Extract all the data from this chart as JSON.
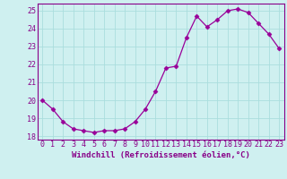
{
  "hours": [
    0,
    1,
    2,
    3,
    4,
    5,
    6,
    7,
    8,
    9,
    10,
    11,
    12,
    13,
    14,
    15,
    16,
    17,
    18,
    19,
    20,
    21,
    22,
    23
  ],
  "values": [
    20.0,
    19.5,
    18.8,
    18.4,
    18.3,
    18.2,
    18.3,
    18.3,
    18.4,
    18.8,
    19.5,
    20.5,
    21.8,
    21.9,
    23.5,
    24.7,
    24.1,
    24.5,
    25.0,
    25.1,
    24.9,
    24.3,
    23.7,
    22.9
  ],
  "line_color": "#990099",
  "marker": "D",
  "marker_size": 2.5,
  "bg_color": "#cff0f0",
  "grid_color": "#aadddd",
  "xlabel": "Windchill (Refroidissement éolien,°C)",
  "xlabel_fontsize": 6.5,
  "tick_label_fontsize": 6.0,
  "ylim": [
    17.8,
    25.4
  ],
  "yticks": [
    18,
    19,
    20,
    21,
    22,
    23,
    24,
    25
  ],
  "title_color": "#880088",
  "spine_color": "#880088",
  "axis_lw": 0.8
}
